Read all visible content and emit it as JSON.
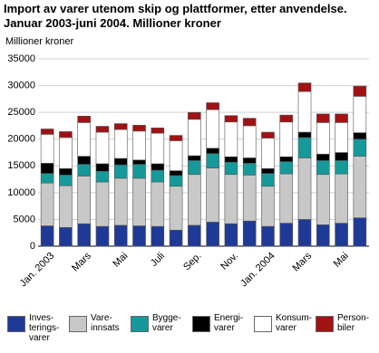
{
  "chart_data": {
    "type": "stacked-bar",
    "title": "Import av varer utenom skip og plattformer, etter anvendelse.\nJanuar 2003-juni 2004. Millioner kroner",
    "y_label": "Millioner kroner",
    "categories": [
      "Jan. 2003",
      null,
      "Mars",
      null,
      "Mai",
      null,
      "Juli",
      null,
      "Sep.",
      null,
      "Nov.",
      null,
      "Jan. 2004",
      null,
      "Mars",
      null,
      "Mai",
      null
    ],
    "series": [
      {
        "name": "Inves-\nterings-\nvarer",
        "color": "#1f3a96",
        "values": [
          3800,
          3500,
          4200,
          3700,
          3900,
          3800,
          3700,
          3000,
          3900,
          4500,
          4200,
          4700,
          3700,
          4300,
          5000,
          4000,
          4300,
          5300
        ]
      },
      {
        "name": "Vare-\ninnsats",
        "color": "#c8c8c8",
        "values": [
          8000,
          7800,
          8900,
          8300,
          8800,
          8900,
          8300,
          8200,
          9500,
          10100,
          9200,
          8600,
          7500,
          9200,
          11500,
          9400,
          9200,
          11500
        ]
      },
      {
        "name": "Bygge-\nvarer",
        "color": "#16999a",
        "values": [
          1800,
          2000,
          2200,
          2000,
          2500,
          2600,
          2200,
          2000,
          2600,
          2700,
          2300,
          2200,
          2400,
          2300,
          3800,
          2600,
          2500,
          3200
        ]
      },
      {
        "name": "Energi-\nvarer",
        "color": "#000000",
        "values": [
          1900,
          1200,
          1500,
          1400,
          1200,
          800,
          1200,
          900,
          900,
          1000,
          1000,
          1000,
          900,
          900,
          1000,
          1200,
          1500,
          1200
        ]
      },
      {
        "name": "Konsum-\nvarer",
        "color": "#ffffff",
        "values": [
          5400,
          5800,
          6300,
          5900,
          5400,
          5400,
          5700,
          5600,
          6800,
          7200,
          6500,
          6000,
          5700,
          6500,
          7600,
          5900,
          5600,
          6800
        ]
      },
      {
        "name": "Person-\nbiler",
        "color": "#a01214",
        "values": [
          1000,
          1100,
          1200,
          1100,
          1100,
          1100,
          1000,
          1000,
          1300,
          1300,
          1200,
          1400,
          1100,
          1300,
          1600,
          1600,
          1600,
          1900
        ]
      }
    ],
    "ylim": [
      0,
      35000
    ],
    "yticks": [
      0,
      5000,
      10000,
      15000,
      20000,
      25000,
      30000,
      35000
    ],
    "grid": true
  }
}
